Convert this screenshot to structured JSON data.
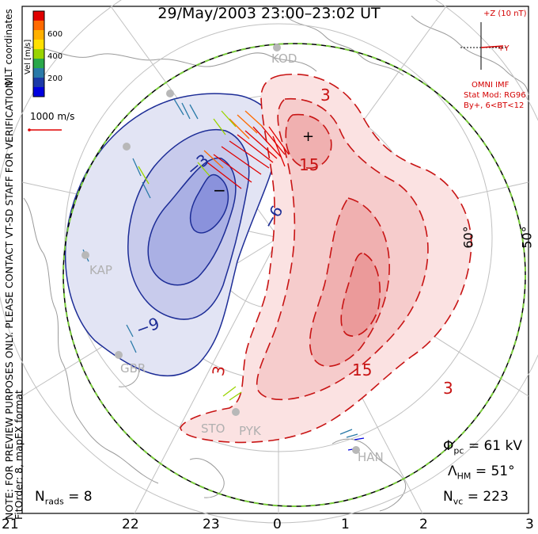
{
  "title": "29/May/2003 23:00–23:02 UT",
  "colorbar": {
    "label": "Vel [m/s]",
    "ticks": [
      "600",
      "400",
      "200"
    ],
    "colors": [
      "#e00000",
      "#ff6a00",
      "#ffb000",
      "#ffe000",
      "#9ad400",
      "#2aa84a",
      "#2a7aa8",
      "#1c3aa8",
      "#0000e0"
    ]
  },
  "coord_label": "MLT coordinates",
  "scale_vector_label": "1000 m/s",
  "imf": {
    "axis_label_z": "+Z (10 nT)",
    "axis_label_y": "+Y",
    "source": "OMNI IMF",
    "model": "Stat Mod: RG96",
    "condition": "By+, 6<BT<12"
  },
  "notes": {
    "preview": "NOTE: FOR PREVIEW PURPOSES ONLY. PLEASE CONTACT VT-SD STAFF FOR VERIFICATION.",
    "fitorder": "FitOrder: 8, mapEX format"
  },
  "stats": {
    "nrads": "N",
    "nrads_sub": "rads",
    "nrads_val": "= 8",
    "phi": "Φ",
    "phi_sub": "pc",
    "phi_val": "= 61 kV",
    "lambda": "Λ",
    "lambda_sub": "HM",
    "lambda_val": "= 51°",
    "nvc": "N",
    "nvc_sub": "vc",
    "nvc_val": "= 223"
  },
  "mlt_labels": [
    "21",
    "22",
    "23",
    "0",
    "1",
    "2",
    "3"
  ],
  "latitude_labels": [
    "60°",
    "50°"
  ],
  "stations": [
    "KOD",
    "KAP",
    "GBR",
    "STO",
    "PYK",
    "HAN"
  ],
  "contour_labels": {
    "neg": [
      "−3",
      "−6",
      "−9"
    ],
    "pos": [
      "3",
      "15",
      "15",
      "3",
      "3"
    ],
    "min_marker": "−",
    "max_marker": "+"
  },
  "potential_colors": {
    "negative_line": "#1c2c96",
    "positive_line": "#c81414",
    "hmb_line": "#7acc3c"
  }
}
